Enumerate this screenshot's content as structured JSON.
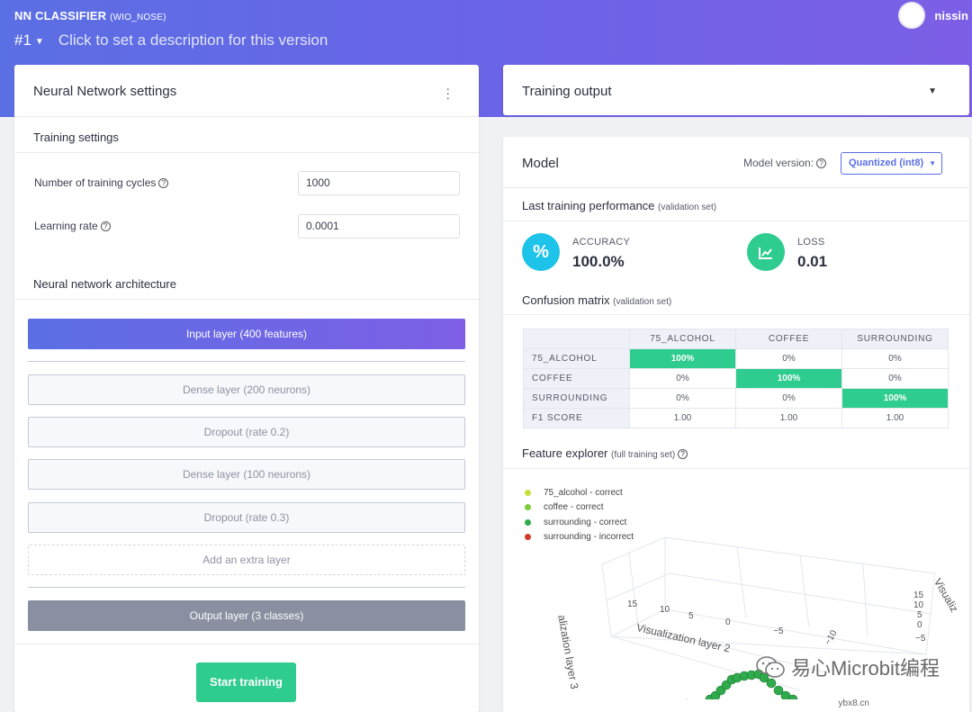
{
  "header": {
    "project_name": "NN CLASSIFIER",
    "project_sub": "(WIO_NOSE)",
    "version_num": "#1",
    "version_desc": "Click to set a description for this version",
    "user_name": "nissin"
  },
  "nn_settings": {
    "title": "Neural Network settings",
    "training_settings": "Training settings",
    "cycles_label": "Number of training cycles",
    "cycles_value": "1000",
    "lr_label": "Learning rate",
    "lr_value": "0.0001",
    "architecture": "Neural network architecture",
    "layers": {
      "input": "Input layer (400 features)",
      "dense1": "Dense layer (200 neurons)",
      "dropout1": "Dropout (rate 0.2)",
      "dense2": "Dense layer (100 neurons)",
      "dropout2": "Dropout (rate 0.3)",
      "extra": "Add an extra layer",
      "output": "Output layer (3 classes)"
    },
    "start_button": "Start training"
  },
  "training_output": {
    "title": "Training output"
  },
  "model": {
    "title": "Model",
    "version_label": "Model version:",
    "version_value": "Quantized (int8)",
    "last_perf": "Last training performance",
    "last_perf_sub": "(validation set)",
    "accuracy_label": "ACCURACY",
    "accuracy_value": "100.0%",
    "loss_label": "LOSS",
    "loss_value": "0.01",
    "confusion_title": "Confusion matrix",
    "confusion_sub": "(validation set)",
    "confusion": {
      "columns": [
        "75_ALCOHOL",
        "COFFEE",
        "SURROUNDING"
      ],
      "rows": [
        {
          "label": "75_ALCOHOL",
          "values": [
            "100%",
            "0%",
            "0%"
          ]
        },
        {
          "label": "COFFEE",
          "values": [
            "0%",
            "100%",
            "0%"
          ]
        },
        {
          "label": "SURROUNDING",
          "values": [
            "0%",
            "0%",
            "100%"
          ]
        },
        {
          "label": "F1 SCORE",
          "values": [
            "1.00",
            "1.00",
            "1.00"
          ]
        }
      ]
    },
    "feature_title": "Feature explorer",
    "feature_sub": "(full training set)",
    "legend": [
      {
        "label": "75_alcohol - correct",
        "color": "#c9e03a"
      },
      {
        "label": "coffee - correct",
        "color": "#7bcf3a"
      },
      {
        "label": "surrounding - correct",
        "color": "#2faa4c"
      },
      {
        "label": "surrounding - incorrect",
        "color": "#d23a2a"
      }
    ],
    "axis": {
      "layer2": "Visualization layer 2",
      "layer3": "alization layer 3",
      "layer1": "Visualiz",
      "ticks_layer2": [
        "15",
        "10",
        "5",
        "0",
        "−5",
        "−10"
      ],
      "ticks_layer1": [
        "15",
        "10",
        "5",
        "0",
        "−5"
      ]
    }
  },
  "watermark": {
    "text": "易心Microbit编程",
    "site": "ybx8.cn"
  },
  "colors": {
    "accent": "#5b6fe4",
    "success": "#2ecc8f",
    "info": "#1ec3e9"
  }
}
